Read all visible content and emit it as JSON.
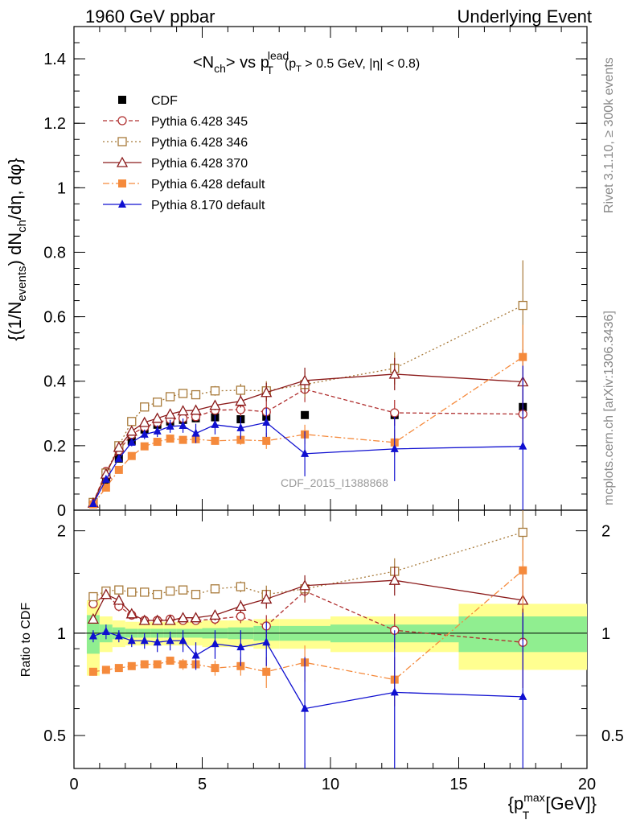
{
  "header": {
    "left": "1960 GeV ppbar",
    "right": "Underlying Event"
  },
  "title_parts": {
    "a": "<N",
    "a_sub": "ch",
    "b": "> vs p",
    "b_sup": "lead",
    "b_sub": "T",
    "c": "(p",
    "c_sub": "T",
    "d": " > 0.5 GeV, |η| < 0.8)"
  },
  "ylabel_parts": {
    "a": "{(1/N",
    "a_sub": "events",
    "b": ") dN",
    "b_sub": "ch",
    "c": "/dη, dφ}"
  },
  "xlabel_parts": {
    "a": "{p",
    "a_sup": "max",
    "a_sub": "T",
    "b": " [GeV]}"
  },
  "ratio_ylabel": "Ratio to CDF",
  "side_text_1": "Rivet 3.1.10, ≥ 300k events",
  "side_text_2": "mcplots.cern.ch [arXiv:1306.3436]",
  "watermark": "CDF_2015_I1388868",
  "colors": {
    "data": "#000000",
    "p345": "#b03030",
    "p346": "#a87a3a",
    "p370": "#8b1a1a",
    "p6def": "#f58a3c",
    "p8": "#1010d0",
    "band_inner": "#90ee90",
    "band_outer": "#ffff90"
  },
  "chart_data": [
    {
      "type": "scatter",
      "panel": "main",
      "title": "<Nch> vs pT lead (pT > 0.5 GeV, |η| < 0.8)",
      "ylabel": "{(1/Nevents) dNch/dη, dφ}",
      "xlim": [
        0,
        20
      ],
      "ylim": [
        0,
        1.5
      ],
      "yticks": [
        "0",
        "0.2",
        "0.4",
        "0.6",
        "0.8",
        "1",
        "1.2",
        "1.4"
      ],
      "legend_placement": "top-left",
      "series": [
        {
          "name": "CDF",
          "style": "data",
          "x": [
            0.75,
            1.25,
            1.75,
            2.25,
            2.75,
            3.25,
            3.75,
            4.25,
            4.75,
            5.5,
            6.5,
            7.5,
            9.0,
            12.5,
            17.5
          ],
          "y": [
            0.02,
            0.095,
            0.16,
            0.215,
            0.25,
            0.265,
            0.275,
            0.28,
            0.285,
            0.288,
            0.282,
            0.29,
            0.295,
            0.295,
            0.32
          ]
        },
        {
          "name": "Pythia 6.428 345",
          "style": "p345",
          "x": [
            0.75,
            1.25,
            1.75,
            2.25,
            2.75,
            3.25,
            3.75,
            4.25,
            4.75,
            5.5,
            6.5,
            7.5,
            9.0,
            12.5,
            17.5
          ],
          "y": [
            0.024,
            0.12,
            0.185,
            0.235,
            0.258,
            0.272,
            0.282,
            0.285,
            0.29,
            0.31,
            0.312,
            0.305,
            0.375,
            0.302,
            0.298
          ],
          "err": [
            0.003,
            0.005,
            0.006,
            0.008,
            0.008,
            0.009,
            0.01,
            0.01,
            0.012,
            0.015,
            0.02,
            0.03,
            0.04,
            0.04,
            0.09
          ]
        },
        {
          "name": "Pythia 6.428 346",
          "style": "p346",
          "x": [
            0.75,
            1.25,
            1.75,
            2.25,
            2.75,
            3.25,
            3.75,
            4.25,
            4.75,
            5.5,
            6.5,
            7.5,
            9.0,
            12.5,
            17.5
          ],
          "y": [
            0.024,
            0.115,
            0.2,
            0.275,
            0.32,
            0.335,
            0.352,
            0.362,
            0.358,
            0.37,
            0.372,
            0.37,
            0.39,
            0.44,
            0.635
          ],
          "err": [
            0.003,
            0.005,
            0.006,
            0.008,
            0.008,
            0.009,
            0.01,
            0.01,
            0.012,
            0.015,
            0.02,
            0.03,
            0.04,
            0.05,
            0.14
          ]
        },
        {
          "name": "Pythia 6.428 370",
          "style": "p370",
          "x": [
            0.75,
            1.25,
            1.75,
            2.25,
            2.75,
            3.25,
            3.75,
            4.25,
            4.75,
            5.5,
            6.5,
            7.5,
            9.0,
            12.5,
            17.5
          ],
          "y": [
            0.022,
            0.112,
            0.195,
            0.245,
            0.272,
            0.285,
            0.298,
            0.308,
            0.31,
            0.325,
            0.338,
            0.365,
            0.402,
            0.422,
            0.398
          ],
          "err": [
            0.003,
            0.005,
            0.006,
            0.008,
            0.008,
            0.009,
            0.01,
            0.01,
            0.012,
            0.015,
            0.02,
            0.03,
            0.04,
            0.05,
            0.1
          ]
        },
        {
          "name": "Pythia 6.428 default",
          "style": "p6def",
          "x": [
            0.75,
            1.25,
            1.75,
            2.25,
            2.75,
            3.25,
            3.75,
            4.25,
            4.75,
            5.5,
            6.5,
            7.5,
            9.0,
            12.5,
            17.5
          ],
          "y": [
            0.018,
            0.07,
            0.125,
            0.168,
            0.198,
            0.212,
            0.222,
            0.218,
            0.22,
            0.215,
            0.218,
            0.215,
            0.235,
            0.21,
            0.475
          ],
          "err": [
            0.003,
            0.004,
            0.005,
            0.006,
            0.007,
            0.008,
            0.008,
            0.009,
            0.01,
            0.012,
            0.015,
            0.025,
            0.03,
            0.04,
            0.1
          ]
        },
        {
          "name": "Pythia 8.170 default",
          "style": "p8",
          "x": [
            0.75,
            1.25,
            1.75,
            2.25,
            2.75,
            3.25,
            3.75,
            4.25,
            4.75,
            5.5,
            6.5,
            7.5,
            9.0,
            12.5,
            17.5
          ],
          "y": [
            0.02,
            0.095,
            0.16,
            0.21,
            0.235,
            0.245,
            0.26,
            0.262,
            0.238,
            0.265,
            0.255,
            0.272,
            0.175,
            0.19,
            0.198
          ],
          "err": [
            0.004,
            0.008,
            0.01,
            0.012,
            0.015,
            0.018,
            0.02,
            0.022,
            0.03,
            0.03,
            0.035,
            0.045,
            0.07,
            0.1,
            0.25
          ]
        }
      ]
    },
    {
      "type": "scatter",
      "panel": "ratio",
      "ylabel": "Ratio to CDF",
      "xlabel": "{pT max [GeV]}",
      "xlim": [
        0,
        20
      ],
      "ylim": [
        0.4,
        2.3
      ],
      "log_y": true,
      "xticks": [
        "0",
        "5",
        "10",
        "15",
        "20"
      ],
      "yticks": [
        "0.5",
        "1",
        "2"
      ],
      "band": {
        "edges": [
          0.5,
          1.0,
          1.5,
          2.0,
          2.5,
          3.0,
          3.5,
          4.0,
          4.5,
          5.0,
          6.0,
          7.0,
          8.0,
          10.0,
          15.0,
          20.0
        ],
        "inner": [
          0.13,
          0.06,
          0.04,
          0.03,
          0.03,
          0.03,
          0.03,
          0.03,
          0.03,
          0.035,
          0.04,
          0.05,
          0.05,
          0.06,
          0.12
        ],
        "outer": [
          0.25,
          0.12,
          0.09,
          0.08,
          0.08,
          0.08,
          0.08,
          0.08,
          0.08,
          0.09,
          0.09,
          0.1,
          0.1,
          0.12,
          0.22
        ]
      },
      "series": [
        {
          "name": "Pythia 6.428 345",
          "style": "p345",
          "x": [
            0.75,
            1.25,
            1.75,
            2.25,
            2.75,
            3.25,
            3.75,
            4.25,
            4.75,
            5.5,
            6.5,
            7.5,
            9.0,
            12.5,
            17.5
          ],
          "y": [
            1.22,
            1.3,
            1.2,
            1.13,
            1.09,
            1.09,
            1.1,
            1.09,
            1.09,
            1.1,
            1.12,
            1.05,
            1.33,
            1.02,
            0.94
          ],
          "err": [
            0.03,
            0.04,
            0.04,
            0.03,
            0.03,
            0.03,
            0.03,
            0.03,
            0.03,
            0.04,
            0.05,
            0.08,
            0.1,
            0.12,
            0.25
          ]
        },
        {
          "name": "Pythia 6.428 346",
          "style": "p346",
          "x": [
            0.75,
            1.25,
            1.75,
            2.25,
            2.75,
            3.25,
            3.75,
            4.25,
            4.75,
            5.5,
            6.5,
            7.5,
            9.0,
            12.5,
            17.5
          ],
          "y": [
            1.28,
            1.33,
            1.34,
            1.32,
            1.32,
            1.3,
            1.33,
            1.34,
            1.3,
            1.35,
            1.37,
            1.3,
            1.35,
            1.52,
            1.98
          ],
          "err": [
            0.03,
            0.04,
            0.04,
            0.03,
            0.03,
            0.03,
            0.03,
            0.03,
            0.03,
            0.04,
            0.05,
            0.08,
            0.1,
            0.14,
            0.35
          ]
        },
        {
          "name": "Pythia 6.428 370",
          "style": "p370",
          "x": [
            0.75,
            1.25,
            1.75,
            2.25,
            2.75,
            3.25,
            3.75,
            4.25,
            4.75,
            5.5,
            6.5,
            7.5,
            9.0,
            12.5,
            17.5
          ],
          "y": [
            1.1,
            1.3,
            1.25,
            1.14,
            1.09,
            1.09,
            1.09,
            1.11,
            1.11,
            1.13,
            1.2,
            1.26,
            1.38,
            1.43,
            1.25
          ],
          "err": [
            0.03,
            0.04,
            0.04,
            0.03,
            0.03,
            0.03,
            0.03,
            0.03,
            0.03,
            0.04,
            0.05,
            0.08,
            0.1,
            0.14,
            0.3
          ]
        },
        {
          "name": "Pythia 6.428 default",
          "style": "p6def",
          "x": [
            0.75,
            1.25,
            1.75,
            2.25,
            2.75,
            3.25,
            3.75,
            4.25,
            4.75,
            5.5,
            6.5,
            7.5,
            9.0,
            12.5,
            17.5
          ],
          "y": [
            0.77,
            0.78,
            0.79,
            0.8,
            0.81,
            0.81,
            0.83,
            0.81,
            0.81,
            0.79,
            0.8,
            0.77,
            0.82,
            0.73,
            1.53
          ],
          "err": [
            0.02,
            0.02,
            0.02,
            0.02,
            0.02,
            0.02,
            0.02,
            0.03,
            0.03,
            0.04,
            0.05,
            0.08,
            0.1,
            0.12,
            0.35
          ]
        },
        {
          "name": "Pythia 8.170 default",
          "style": "p8",
          "x": [
            0.75,
            1.25,
            1.75,
            2.25,
            2.75,
            3.25,
            3.75,
            4.25,
            4.75,
            5.5,
            6.5,
            7.5,
            9.0,
            12.5,
            17.5
          ],
          "y": [
            0.98,
            1.01,
            0.98,
            0.95,
            0.95,
            0.94,
            0.95,
            0.95,
            0.86,
            0.93,
            0.91,
            0.94,
            0.6,
            0.67,
            0.65
          ],
          "err": [
            0.04,
            0.05,
            0.04,
            0.04,
            0.05,
            0.06,
            0.06,
            0.07,
            0.08,
            0.09,
            0.11,
            0.14,
            0.25,
            0.35,
            0.5
          ]
        }
      ]
    }
  ]
}
